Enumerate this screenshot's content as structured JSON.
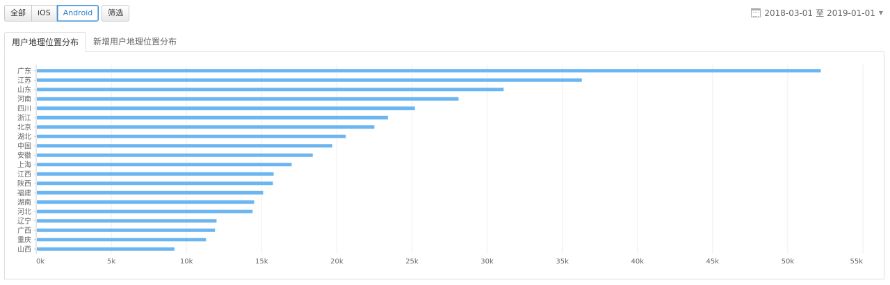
{
  "filters": {
    "all_label": "全部",
    "ios_label": "iOS",
    "android_label": "Android",
    "filter_label": "筛选"
  },
  "date_range": {
    "start": "2018-03-01",
    "separator": "至",
    "end": "2019-01-01"
  },
  "tabs": [
    {
      "label": "用户地理位置分布",
      "active": true
    },
    {
      "label": "新增用户地理位置分布",
      "active": false
    }
  ],
  "chart_data": {
    "type": "bar",
    "orientation": "horizontal",
    "categories": [
      "广东",
      "江苏",
      "山东",
      "河南",
      "四川",
      "浙江",
      "北京",
      "湖北",
      "中国",
      "安徽",
      "上海",
      "江西",
      "陕西",
      "福建",
      "湖南",
      "河北",
      "辽宁",
      "广西",
      "重庆",
      "山西"
    ],
    "values": [
      52200,
      36300,
      31100,
      28100,
      25200,
      23400,
      22500,
      20600,
      19700,
      18400,
      17000,
      15800,
      15750,
      15100,
      14500,
      14400,
      12000,
      11900,
      11300,
      9200
    ],
    "xlim": [
      0,
      55000
    ],
    "xticks": [
      0,
      5000,
      10000,
      15000,
      20000,
      25000,
      30000,
      35000,
      40000,
      45000,
      50000,
      55000
    ],
    "xtick_labels": [
      "0k",
      "5k",
      "10k",
      "15k",
      "20k",
      "25k",
      "30k",
      "35k",
      "40k",
      "45k",
      "50k",
      "55k"
    ],
    "bar_color": "#6bb5f0",
    "grid": true
  }
}
